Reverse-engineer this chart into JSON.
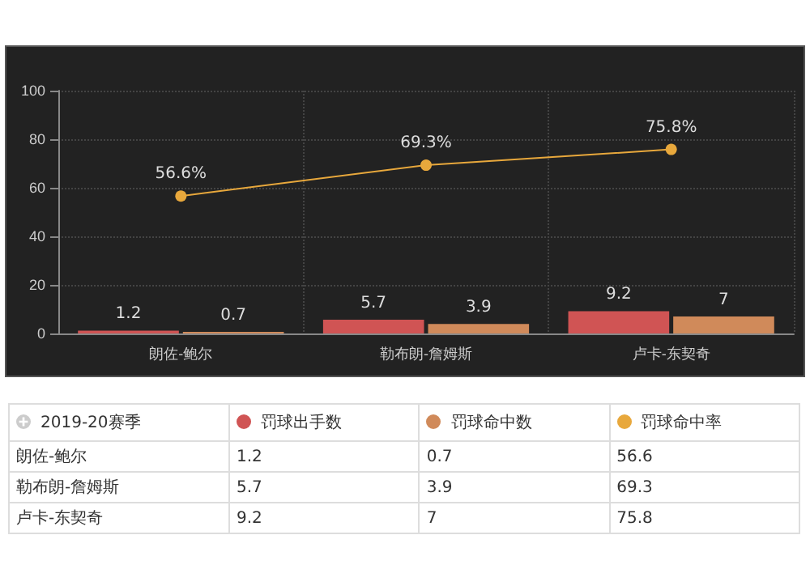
{
  "chart_data": [
    {
      "type": "bar",
      "categories": [
        "朗佐-鲍尔",
        "勒布朗-詹姆斯",
        "卢卡-东契奇"
      ],
      "series": [
        {
          "color": "#d05454",
          "values": [
            1.2,
            5.7,
            9.2
          ]
        },
        {
          "color": "#d08a5a",
          "values": [
            0.7,
            3.9,
            7
          ]
        },
        {
          "type": "line",
          "color": "#e8a83c",
          "values": [
            56.6,
            69.3,
            75.8
          ],
          "value_labels": [
            "56.6%",
            "69.3%",
            "75.8%"
          ]
        }
      ],
      "ylim": [
        0,
        100
      ],
      "yticks": [
        0,
        20,
        40,
        60,
        80,
        100
      ],
      "grid": true,
      "data_labels": true,
      "marker": "circle"
    },
    {
      "type": "other",
      "legend_title": "2019-20赛季",
      "categories": [
        "朗佐-鲍尔",
        "勒布朗-詹姆斯",
        "卢卡-东契奇"
      ],
      "series": [
        {
          "name": "罚球出手数",
          "color": "#d05454",
          "values": [
            1.2,
            5.7,
            9.2
          ]
        },
        {
          "name": "罚球命中数",
          "color": "#d08a5a",
          "values": [
            0.7,
            3.9,
            7
          ]
        },
        {
          "name": "罚球命中率",
          "color": "#e8a83c",
          "values": [
            56.6,
            69.3,
            75.8
          ]
        }
      ],
      "legend": "top",
      "data_labels": true
    }
  ]
}
